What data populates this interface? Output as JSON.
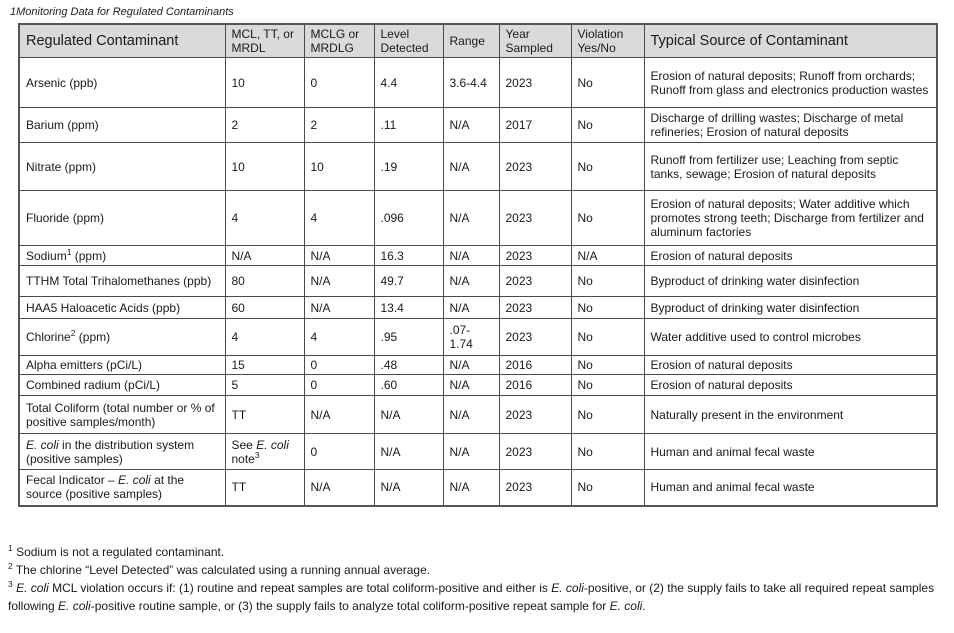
{
  "page": {
    "title": "1Monitoring Data for Regulated Contaminants"
  },
  "colors": {
    "header_background": "#d8dadc",
    "border": "#4a4a4a",
    "text": "#1a1a1a"
  },
  "table": {
    "columns": [
      "Regulated Contaminant",
      "MCL, TT, or MRDL",
      "MCLG or MRDLG",
      "Level Detected",
      "Range",
      "Year Sampled",
      "Violation Yes/No",
      "Typical Source of Contaminant"
    ],
    "rows": [
      {
        "cells": [
          "Arsenic (ppb)",
          "10",
          "0",
          "4.4",
          "3.6-4.4",
          "2023",
          "No",
          "Erosion of natural deposits; Runoff from orchards; Runoff from glass and electronics production wastes"
        ]
      },
      {
        "cells": [
          "Barium (ppm)",
          "2",
          "2",
          ".11",
          "N/A",
          "2017",
          "No",
          "Discharge of drilling wastes; Discharge of metal refineries; Erosion of natural deposits"
        ]
      },
      {
        "cells": [
          "Nitrate (ppm)",
          "10",
          "10",
          ".19",
          "N/A",
          "2023",
          "No",
          "Runoff from fertilizer use; Leaching from septic tanks, sewage; Erosion of natural deposits"
        ]
      },
      {
        "cells": [
          "Fluoride (ppm)",
          "4",
          "4",
          ".096",
          "N/A",
          "2023",
          "No",
          "Erosion of natural deposits; Water additive which promotes strong teeth; Discharge from fertilizer and aluminum factories"
        ]
      },
      {
        "cells": [
          [
            {
              "t": "Sodium"
            },
            {
              "t": "1",
              "sup": true
            },
            {
              "t": " (ppm)"
            }
          ],
          "N/A",
          "N/A",
          "16.3",
          "N/A",
          "2023",
          "N/A",
          "Erosion of natural deposits"
        ]
      },
      {
        "cells": [
          "TTHM Total Trihalomethanes (ppb)",
          "80",
          "N/A",
          "49.7",
          "N/A",
          "2023",
          "No",
          "Byproduct of drinking water disinfection"
        ]
      },
      {
        "cells": [
          "HAA5 Haloacetic Acids (ppb)",
          "60",
          "N/A",
          "13.4",
          "N/A",
          "2023",
          "No",
          "Byproduct of drinking water disinfection"
        ]
      },
      {
        "cells": [
          [
            {
              "t": "Chlorine"
            },
            {
              "t": "2",
              "sup": true
            },
            {
              "t": " (ppm)"
            }
          ],
          "4",
          "4",
          ".95",
          ".07-1.74",
          "2023",
          "No",
          "Water additive used to control microbes"
        ]
      },
      {
        "cells": [
          "Alpha emitters (pCi/L)",
          "15",
          "0",
          ".48",
          "N/A",
          "2016",
          "No",
          "Erosion of natural deposits"
        ]
      },
      {
        "cells": [
          "Combined radium (pCi/L)",
          "5",
          "0",
          ".60",
          "N/A",
          "2016",
          "No",
          "Erosion of natural deposits"
        ]
      },
      {
        "cells": [
          "Total Coliform (total number or % of positive samples/month)",
          "TT",
          "N/A",
          "N/A",
          "N/A",
          "2023",
          "No",
          "Naturally present in the environment"
        ]
      },
      {
        "cells": [
          [
            {
              "t": "E. coli",
              "i": true
            },
            {
              "t": " in the distribution system (positive samples)"
            }
          ],
          [
            {
              "t": "See "
            },
            {
              "t": "E. coli",
              "i": true
            },
            {
              "t": " note"
            },
            {
              "t": "3",
              "sup": true
            }
          ],
          "0",
          "N/A",
          "N/A",
          "2023",
          "No",
          "Human and animal fecal waste"
        ]
      },
      {
        "cells": [
          [
            {
              "t": "Fecal Indicator – "
            },
            {
              "t": "E. coli",
              "i": true
            },
            {
              "t": " at the source (positive samples)"
            }
          ],
          "TT",
          "N/A",
          "N/A",
          "N/A",
          "2023",
          "No",
          "Human and animal fecal waste"
        ]
      }
    ]
  },
  "footnotes": [
    [
      {
        "t": "1",
        "sup": true
      },
      {
        "t": " Sodium is not a regulated contaminant."
      }
    ],
    [
      {
        "t": "2",
        "sup": true
      },
      {
        "t": " The chlorine “Level Detected” was calculated using a running annual average."
      }
    ],
    [
      {
        "t": "3",
        "sup": true
      },
      {
        "t": " "
      },
      {
        "t": "E. coli",
        "i": true
      },
      {
        "t": " MCL violation occurs if: (1) routine and repeat samples are total coliform-positive and either is "
      },
      {
        "t": "E. coli",
        "i": true
      },
      {
        "t": "-positive, or (2) the supply fails to take all required repeat samples following "
      },
      {
        "t": "E. coli",
        "i": true
      },
      {
        "t": "-positive routine sample, or (3) the supply fails to analyze total coliform-positive repeat sample for "
      },
      {
        "t": "E. coli",
        "i": true
      },
      {
        "t": "."
      }
    ]
  ]
}
